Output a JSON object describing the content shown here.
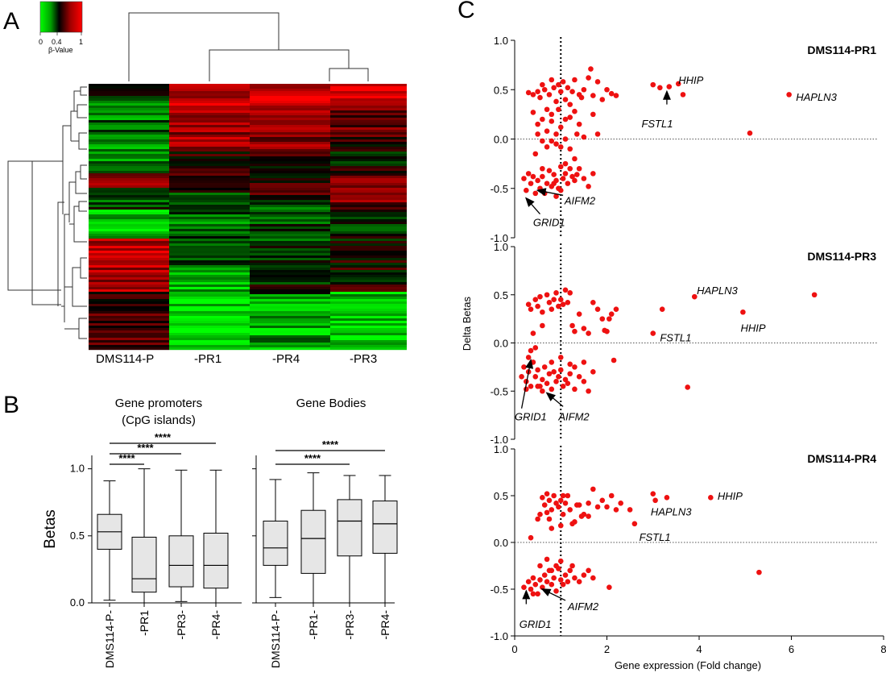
{
  "panels": {
    "A": "A",
    "B": "B",
    "C": "C"
  },
  "heatmap": {
    "colorbar": {
      "tick_labels": [
        "0",
        "0.4",
        "1"
      ],
      "label": "β-Value",
      "colors": [
        "#00ff00",
        "#008000",
        "#000000",
        "#800000",
        "#ff0000"
      ]
    },
    "samples": [
      "DMS114-P",
      "-PR1",
      "-PR4",
      "-PR3"
    ]
  },
  "chart_data": [
    {
      "type": "box",
      "title_lines": [
        "Gene promoters",
        "(CpG islands)"
      ],
      "ylabel": "Betas",
      "ylim": [
        0,
        1.1
      ],
      "yticks": [
        "0.0",
        "0.5",
        "1.0"
      ],
      "categories": [
        "DMS114-P-",
        "-PR1",
        "-PR3-",
        "-PR4-"
      ],
      "boxes": [
        {
          "min": 0.02,
          "q1": 0.4,
          "median": 0.53,
          "q3": 0.66,
          "max": 0.91
        },
        {
          "min": 0.0,
          "q1": 0.08,
          "median": 0.18,
          "q3": 0.49,
          "max": 1.0
        },
        {
          "min": 0.01,
          "q1": 0.12,
          "median": 0.28,
          "q3": 0.5,
          "max": 0.99
        },
        {
          "min": 0.0,
          "q1": 0.11,
          "median": 0.28,
          "q3": 0.52,
          "max": 0.99
        }
      ],
      "significance": [
        {
          "from": 0,
          "to": 1,
          "label": "****"
        },
        {
          "from": 0,
          "to": 2,
          "label": "****"
        },
        {
          "from": 0,
          "to": 3,
          "label": "****"
        }
      ],
      "fill_color": "#e6e6e6"
    },
    {
      "type": "box",
      "title_lines": [
        "Gene Bodies"
      ],
      "ylim": [
        0,
        1.1
      ],
      "categories": [
        "DMS114-P-",
        "-PR1-",
        "-PR3-",
        "-PR4-"
      ],
      "boxes": [
        {
          "min": 0.04,
          "q1": 0.28,
          "median": 0.41,
          "q3": 0.61,
          "max": 0.92
        },
        {
          "min": 0.0,
          "q1": 0.22,
          "median": 0.48,
          "q3": 0.69,
          "max": 0.97
        },
        {
          "min": 0.0,
          "q1": 0.35,
          "median": 0.61,
          "q3": 0.77,
          "max": 0.95
        },
        {
          "min": 0.0,
          "q1": 0.37,
          "median": 0.59,
          "q3": 0.76,
          "max": 0.95
        }
      ],
      "significance": [
        {
          "from": 0,
          "to": 2,
          "label": "****"
        },
        {
          "from": 0,
          "to": 3,
          "label": "****"
        }
      ],
      "fill_color": "#e6e6e6"
    },
    {
      "type": "scatter",
      "title": "DMS114-PR1",
      "xlim": [
        0,
        8
      ],
      "ylim": [
        -1,
        1
      ],
      "yticks": [
        "-1.0",
        "-0.5",
        "0.0",
        "0.5",
        "1.0"
      ],
      "point_color": "#ee1111",
      "vline_x": 1,
      "points": [
        [
          0.3,
          0.47
        ],
        [
          0.4,
          0.45
        ],
        [
          0.5,
          0.48
        ],
        [
          0.55,
          0.42
        ],
        [
          0.6,
          0.55
        ],
        [
          0.65,
          0.5
        ],
        [
          0.7,
          0.3
        ],
        [
          0.75,
          0.45
        ],
        [
          0.8,
          0.6
        ],
        [
          0.85,
          0.52
        ],
        [
          0.9,
          0.38
        ],
        [
          0.95,
          0.55
        ],
        [
          1.0,
          0.48
        ],
        [
          1.05,
          0.58
        ],
        [
          1.1,
          0.4
        ],
        [
          1.15,
          0.52
        ],
        [
          1.2,
          0.35
        ],
        [
          1.3,
          0.6
        ],
        [
          1.4,
          0.45
        ],
        [
          1.5,
          0.5
        ],
        [
          1.6,
          0.62
        ],
        [
          1.7,
          0.44
        ],
        [
          1.8,
          0.58
        ],
        [
          1.9,
          0.4
        ],
        [
          2.0,
          0.5
        ],
        [
          2.1,
          0.46
        ],
        [
          2.2,
          0.44
        ],
        [
          1.25,
          0.48
        ],
        [
          1.45,
          0.42
        ],
        [
          1.65,
          0.71
        ],
        [
          0.4,
          0.27
        ],
        [
          0.5,
          0.15
        ],
        [
          0.6,
          0.2
        ],
        [
          0.7,
          0.08
        ],
        [
          0.8,
          0.18
        ],
        [
          0.9,
          0.05
        ],
        [
          1.0,
          0.12
        ],
        [
          1.1,
          0.0
        ],
        [
          1.2,
          0.22
        ],
        [
          0.5,
          0.05
        ],
        [
          0.7,
          -0.08
        ],
        [
          0.9,
          -0.05
        ],
        [
          1.3,
          0.28
        ],
        [
          1.5,
          0.02
        ],
        [
          1.7,
          0.25
        ],
        [
          0.45,
          -0.15
        ],
        [
          0.8,
          0.25
        ],
        [
          1.4,
          0.15
        ],
        [
          1.1,
          0.2
        ],
        [
          0.6,
          -0.02
        ],
        [
          0.8,
          -0.02
        ],
        [
          1.0,
          -0.08
        ],
        [
          1.2,
          -0.1
        ],
        [
          1.8,
          0.05
        ],
        [
          0.95,
          0.3
        ],
        [
          1.35,
          0.05
        ],
        [
          0.2,
          -0.4
        ],
        [
          0.3,
          -0.35
        ],
        [
          0.35,
          -0.45
        ],
        [
          0.4,
          -0.38
        ],
        [
          0.5,
          -0.42
        ],
        [
          0.55,
          -0.5
        ],
        [
          0.6,
          -0.38
        ],
        [
          0.65,
          -0.55
        ],
        [
          0.7,
          -0.45
        ],
        [
          0.75,
          -0.32
        ],
        [
          0.8,
          -0.48
        ],
        [
          0.85,
          -0.36
        ],
        [
          0.9,
          -0.42
        ],
        [
          0.95,
          -0.5
        ],
        [
          1.0,
          -0.28
        ],
        [
          1.05,
          -0.4
        ],
        [
          1.1,
          -0.35
        ],
        [
          1.15,
          -0.45
        ],
        [
          1.2,
          -0.3
        ],
        [
          1.25,
          -0.38
        ],
        [
          1.3,
          -0.42
        ],
        [
          1.35,
          -0.36
        ],
        [
          1.4,
          -0.3
        ],
        [
          1.5,
          -0.4
        ],
        [
          1.6,
          -0.48
        ],
        [
          1.7,
          -0.35
        ],
        [
          0.25,
          -0.52
        ],
        [
          0.45,
          -0.55
        ],
        [
          0.9,
          -0.58
        ],
        [
          1.0,
          -0.52
        ],
        [
          0.6,
          -0.3
        ],
        [
          1.1,
          -0.25
        ],
        [
          1.3,
          -0.2
        ],
        [
          0.85,
          -0.45
        ],
        [
          3.0,
          0.55
        ],
        [
          3.15,
          0.52
        ],
        [
          3.35,
          0.53
        ],
        [
          3.55,
          0.56
        ],
        [
          3.65,
          0.45
        ],
        [
          5.95,
          0.45
        ],
        [
          5.1,
          0.06
        ]
      ],
      "annotations": [
        {
          "text": "HHIP",
          "x": 3.55,
          "y": 0.6,
          "arrow": false
        },
        {
          "text": "HAPLN3",
          "x": 6.1,
          "y": 0.43,
          "arrow": false
        },
        {
          "text": "FSTL1",
          "x": 2.75,
          "y": 0.16,
          "arrow": true,
          "ax": 3.3,
          "ay": 0.35,
          "bx": 3.3,
          "by": 0.48
        },
        {
          "text": "AIFM2",
          "x": 1.08,
          "y": -0.62,
          "arrow": true,
          "ax": 1.05,
          "ay": -0.57,
          "bx": 0.5,
          "by": -0.52
        },
        {
          "text": "GRID1",
          "x": 0.4,
          "y": -0.84,
          "arrow": true,
          "ax": 0.55,
          "ay": -0.76,
          "bx": 0.25,
          "by": -0.6
        }
      ]
    },
    {
      "type": "scatter",
      "title": "DMS114-PR3",
      "xlim": [
        0,
        8
      ],
      "ylim": [
        -1,
        1
      ],
      "yticks": [
        "-1.0",
        "-0.5",
        "0.0",
        "0.5",
        "1.0"
      ],
      "ylabel": "Delta Betas",
      "point_color": "#ee1111",
      "vline_x": 1,
      "points": [
        [
          0.3,
          0.4
        ],
        [
          0.35,
          0.35
        ],
        [
          0.45,
          0.45
        ],
        [
          0.5,
          0.38
        ],
        [
          0.6,
          0.32
        ],
        [
          0.7,
          0.5
        ],
        [
          0.75,
          0.42
        ],
        [
          0.8,
          0.35
        ],
        [
          0.85,
          0.45
        ],
        [
          0.9,
          0.52
        ],
        [
          0.95,
          0.38
        ],
        [
          1.0,
          0.45
        ],
        [
          1.05,
          0.4
        ],
        [
          1.1,
          0.55
        ],
        [
          1.15,
          0.42
        ],
        [
          1.25,
          0.18
        ],
        [
          1.3,
          0.12
        ],
        [
          1.4,
          0.3
        ],
        [
          1.5,
          0.15
        ],
        [
          1.6,
          0.1
        ],
        [
          1.7,
          0.42
        ],
        [
          1.8,
          0.35
        ],
        [
          1.9,
          0.25
        ],
        [
          2.0,
          0.12
        ],
        [
          2.05,
          0.25
        ],
        [
          2.2,
          0.35
        ],
        [
          2.1,
          0.3
        ],
        [
          1.95,
          0.13
        ],
        [
          0.4,
          0.1
        ],
        [
          0.6,
          0.18
        ],
        [
          0.55,
          0.48
        ],
        [
          1.2,
          0.52
        ],
        [
          3.2,
          0.35
        ],
        [
          3.0,
          0.1
        ],
        [
          3.9,
          0.48
        ],
        [
          4.95,
          0.32
        ],
        [
          6.5,
          0.5
        ],
        [
          0.15,
          -0.35
        ],
        [
          0.2,
          -0.25
        ],
        [
          0.25,
          -0.4
        ],
        [
          0.3,
          -0.3
        ],
        [
          0.35,
          -0.45
        ],
        [
          0.4,
          -0.2
        ],
        [
          0.45,
          -0.35
        ],
        [
          0.5,
          -0.28
        ],
        [
          0.55,
          -0.45
        ],
        [
          0.6,
          -0.38
        ],
        [
          0.65,
          -0.25
        ],
        [
          0.7,
          -0.42
        ],
        [
          0.75,
          -0.32
        ],
        [
          0.8,
          -0.48
        ],
        [
          0.85,
          -0.3
        ],
        [
          0.9,
          -0.4
        ],
        [
          0.95,
          -0.35
        ],
        [
          1.0,
          -0.28
        ],
        [
          1.05,
          -0.45
        ],
        [
          1.1,
          -0.38
        ],
        [
          1.15,
          -0.42
        ],
        [
          1.2,
          -0.32
        ],
        [
          1.3,
          -0.48
        ],
        [
          1.4,
          -0.35
        ],
        [
          1.5,
          -0.4
        ],
        [
          1.6,
          -0.5
        ],
        [
          1.7,
          -0.3
        ],
        [
          0.35,
          -0.08
        ],
        [
          0.45,
          -0.05
        ],
        [
          0.3,
          -0.15
        ],
        [
          0.5,
          -0.45
        ],
        [
          1.0,
          -0.15
        ],
        [
          1.2,
          -0.22
        ],
        [
          1.3,
          -0.25
        ],
        [
          1.5,
          -0.2
        ],
        [
          2.15,
          -0.18
        ],
        [
          0.6,
          -0.5
        ],
        [
          0.8,
          -0.2
        ],
        [
          0.25,
          -0.48
        ],
        [
          3.75,
          -0.46
        ]
      ],
      "annotations": [
        {
          "text": "HAPLN3",
          "x": 3.95,
          "y": 0.55,
          "arrow": false
        },
        {
          "text": "HHIP",
          "x": 4.9,
          "y": 0.16,
          "arrow": false
        },
        {
          "text": "FSTL1",
          "x": 3.15,
          "y": 0.06,
          "arrow": false
        },
        {
          "text": "GRID1",
          "x": 0.0,
          "y": -0.76,
          "arrow": true,
          "ax": 0.15,
          "ay": -0.68,
          "bx": 0.35,
          "by": -0.18
        },
        {
          "text": "AIFM2",
          "x": 0.95,
          "y": -0.76,
          "arrow": true,
          "ax": 1.05,
          "ay": -0.66,
          "bx": 0.7,
          "by": -0.52
        }
      ]
    },
    {
      "type": "scatter",
      "title": "DMS114-PR4",
      "xlim": [
        0,
        8
      ],
      "ylim": [
        -1,
        1
      ],
      "yticks": [
        "-1.0",
        "-0.5",
        "0.0",
        "0.5",
        "1.0"
      ],
      "xticks": [
        "0",
        "2",
        "4",
        "6",
        "8"
      ],
      "xlabel": "Gene expression (Fold change)",
      "point_color": "#ee1111",
      "vline_x": 1,
      "points": [
        [
          0.6,
          0.48
        ],
        [
          0.65,
          0.4
        ],
        [
          0.7,
          0.52
        ],
        [
          0.75,
          0.45
        ],
        [
          0.8,
          0.35
        ],
        [
          0.85,
          0.5
        ],
        [
          0.9,
          0.42
        ],
        [
          0.95,
          0.38
        ],
        [
          1.0,
          0.45
        ],
        [
          1.05,
          0.3
        ],
        [
          1.1,
          0.42
        ],
        [
          1.2,
          0.35
        ],
        [
          1.3,
          0.22
        ],
        [
          1.4,
          0.4
        ],
        [
          1.5,
          0.3
        ],
        [
          1.6,
          0.42
        ],
        [
          1.7,
          0.57
        ],
        [
          1.8,
          0.38
        ],
        [
          1.9,
          0.45
        ],
        [
          2.0,
          0.38
        ],
        [
          2.1,
          0.5
        ],
        [
          2.2,
          0.35
        ],
        [
          2.3,
          0.42
        ],
        [
          2.5,
          0.35
        ],
        [
          1.15,
          0.5
        ],
        [
          0.75,
          0.25
        ],
        [
          0.55,
          0.3
        ],
        [
          0.8,
          0.15
        ],
        [
          1.0,
          0.18
        ],
        [
          1.25,
          0.2
        ],
        [
          1.45,
          0.28
        ],
        [
          0.35,
          0.05
        ],
        [
          0.5,
          0.25
        ],
        [
          1.35,
          0.4
        ],
        [
          1.05,
          0.5
        ],
        [
          0.7,
          0.32
        ],
        [
          1.6,
          0.28
        ],
        [
          3.0,
          0.52
        ],
        [
          3.05,
          0.45
        ],
        [
          3.3,
          0.48
        ],
        [
          4.25,
          0.48
        ],
        [
          2.6,
          0.2
        ],
        [
          0.2,
          -0.48
        ],
        [
          0.3,
          -0.42
        ],
        [
          0.35,
          -0.5
        ],
        [
          0.4,
          -0.38
        ],
        [
          0.45,
          -0.45
        ],
        [
          0.5,
          -0.55
        ],
        [
          0.55,
          -0.4
        ],
        [
          0.6,
          -0.48
        ],
        [
          0.65,
          -0.35
        ],
        [
          0.7,
          -0.42
        ],
        [
          0.75,
          -0.3
        ],
        [
          0.8,
          -0.45
        ],
        [
          0.85,
          -0.38
        ],
        [
          0.9,
          -0.52
        ],
        [
          0.95,
          -0.28
        ],
        [
          1.0,
          -0.4
        ],
        [
          1.05,
          -0.45
        ],
        [
          1.1,
          -0.35
        ],
        [
          1.15,
          -0.42
        ],
        [
          1.2,
          -0.3
        ],
        [
          1.3,
          -0.38
        ],
        [
          1.4,
          -0.42
        ],
        [
          1.5,
          -0.35
        ],
        [
          1.6,
          -0.3
        ],
        [
          1.7,
          -0.38
        ],
        [
          0.7,
          -0.18
        ],
        [
          0.9,
          -0.25
        ],
        [
          1.0,
          -0.2
        ],
        [
          0.55,
          -0.25
        ],
        [
          1.25,
          -0.25
        ],
        [
          2.05,
          -0.48
        ],
        [
          0.4,
          -0.55
        ],
        [
          0.8,
          -0.3
        ],
        [
          5.3,
          -0.32
        ]
      ],
      "annotations": [
        {
          "text": "HHIP",
          "x": 4.4,
          "y": 0.5,
          "arrow": false
        },
        {
          "text": "HAPLN3",
          "x": 2.95,
          "y": 0.33,
          "arrow": false
        },
        {
          "text": "FSTL1",
          "x": 2.7,
          "y": 0.06,
          "arrow": false
        },
        {
          "text": "GRID1",
          "x": 0.1,
          "y": -0.87,
          "arrow": true,
          "ax": 0.25,
          "ay": -0.66,
          "bx": 0.25,
          "by": -0.52
        },
        {
          "text": "AIFM2",
          "x": 1.15,
          "y": -0.68,
          "arrow": true,
          "ax": 1.1,
          "ay": -0.62,
          "bx": 0.6,
          "by": -0.5
        }
      ]
    }
  ]
}
